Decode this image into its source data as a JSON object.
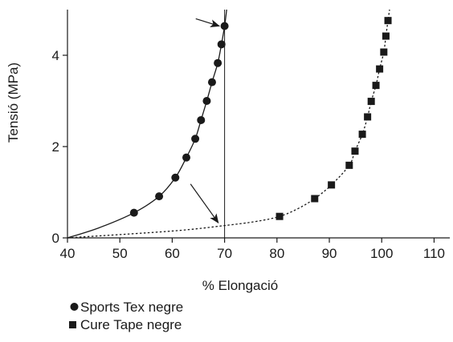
{
  "chart_data": {
    "type": "scatter",
    "xlabel": "% Elongació",
    "ylabel": "Tensió (MPa)",
    "xlim": [
      40,
      113
    ],
    "ylim": [
      0,
      5
    ],
    "xticks": [
      40,
      50,
      60,
      70,
      80,
      90,
      100,
      110
    ],
    "yticks": [
      0,
      2,
      4
    ],
    "grid": false,
    "legend_position": "bottom-left",
    "series": [
      {
        "name": "Sports Tex negre",
        "marker": "circle",
        "line": "solid",
        "color": "#1a1a1a",
        "points": [
          {
            "x": 52.7,
            "y": 0.55
          },
          {
            "x": 57.5,
            "y": 0.91
          },
          {
            "x": 60.6,
            "y": 1.32
          },
          {
            "x": 62.7,
            "y": 1.76
          },
          {
            "x": 64.4,
            "y": 2.17
          },
          {
            "x": 65.5,
            "y": 2.58
          },
          {
            "x": 66.6,
            "y": 3.0
          },
          {
            "x": 67.6,
            "y": 3.41
          },
          {
            "x": 68.7,
            "y": 3.83
          },
          {
            "x": 69.4,
            "y": 4.24
          },
          {
            "x": 70.0,
            "y": 4.64
          }
        ],
        "fit": [
          [
            40,
            0
          ],
          [
            46,
            0.22
          ],
          [
            52.7,
            0.55
          ],
          [
            57.5,
            0.91
          ],
          [
            60.6,
            1.32
          ],
          [
            62.7,
            1.76
          ],
          [
            64.4,
            2.17
          ],
          [
            65.5,
            2.58
          ],
          [
            66.6,
            3.0
          ],
          [
            67.6,
            3.41
          ],
          [
            68.7,
            3.83
          ],
          [
            69.4,
            4.24
          ],
          [
            70.0,
            4.64
          ],
          [
            70.4,
            5.0
          ]
        ]
      },
      {
        "name": "Cure Tape negre",
        "marker": "square",
        "line": "dotted",
        "color": "#1a1a1a",
        "points": [
          {
            "x": 80.5,
            "y": 0.47
          },
          {
            "x": 87.2,
            "y": 0.86
          },
          {
            "x": 90.4,
            "y": 1.16
          },
          {
            "x": 93.8,
            "y": 1.59
          },
          {
            "x": 94.9,
            "y": 1.9
          },
          {
            "x": 96.3,
            "y": 2.27
          },
          {
            "x": 97.3,
            "y": 2.65
          },
          {
            "x": 98.0,
            "y": 2.99
          },
          {
            "x": 98.9,
            "y": 3.34
          },
          {
            "x": 99.6,
            "y": 3.7
          },
          {
            "x": 100.4,
            "y": 4.07
          },
          {
            "x": 100.8,
            "y": 4.42
          },
          {
            "x": 101.2,
            "y": 4.76
          }
        ],
        "fit": [
          [
            40,
            0
          ],
          [
            60,
            0.15
          ],
          [
            70,
            0.27
          ],
          [
            76,
            0.36
          ],
          [
            80.5,
            0.47
          ],
          [
            84,
            0.64
          ],
          [
            87.2,
            0.86
          ],
          [
            90.4,
            1.16
          ],
          [
            93.8,
            1.59
          ],
          [
            94.9,
            1.9
          ],
          [
            96.3,
            2.27
          ],
          [
            97.3,
            2.65
          ],
          [
            98.0,
            2.99
          ],
          [
            98.9,
            3.34
          ],
          [
            99.6,
            3.7
          ],
          [
            100.4,
            4.07
          ],
          [
            100.8,
            4.42
          ],
          [
            101.2,
            4.76
          ],
          [
            101.5,
            5.0
          ]
        ]
      }
    ],
    "reference_line": {
      "x": 70
    },
    "annotations": [
      {
        "kind": "arrow",
        "from": [
          64.5,
          4.8
        ],
        "to": [
          69.0,
          4.64
        ]
      },
      {
        "kind": "arrow",
        "from": [
          63.5,
          1.18
        ],
        "to": [
          68.8,
          0.33
        ]
      }
    ]
  }
}
